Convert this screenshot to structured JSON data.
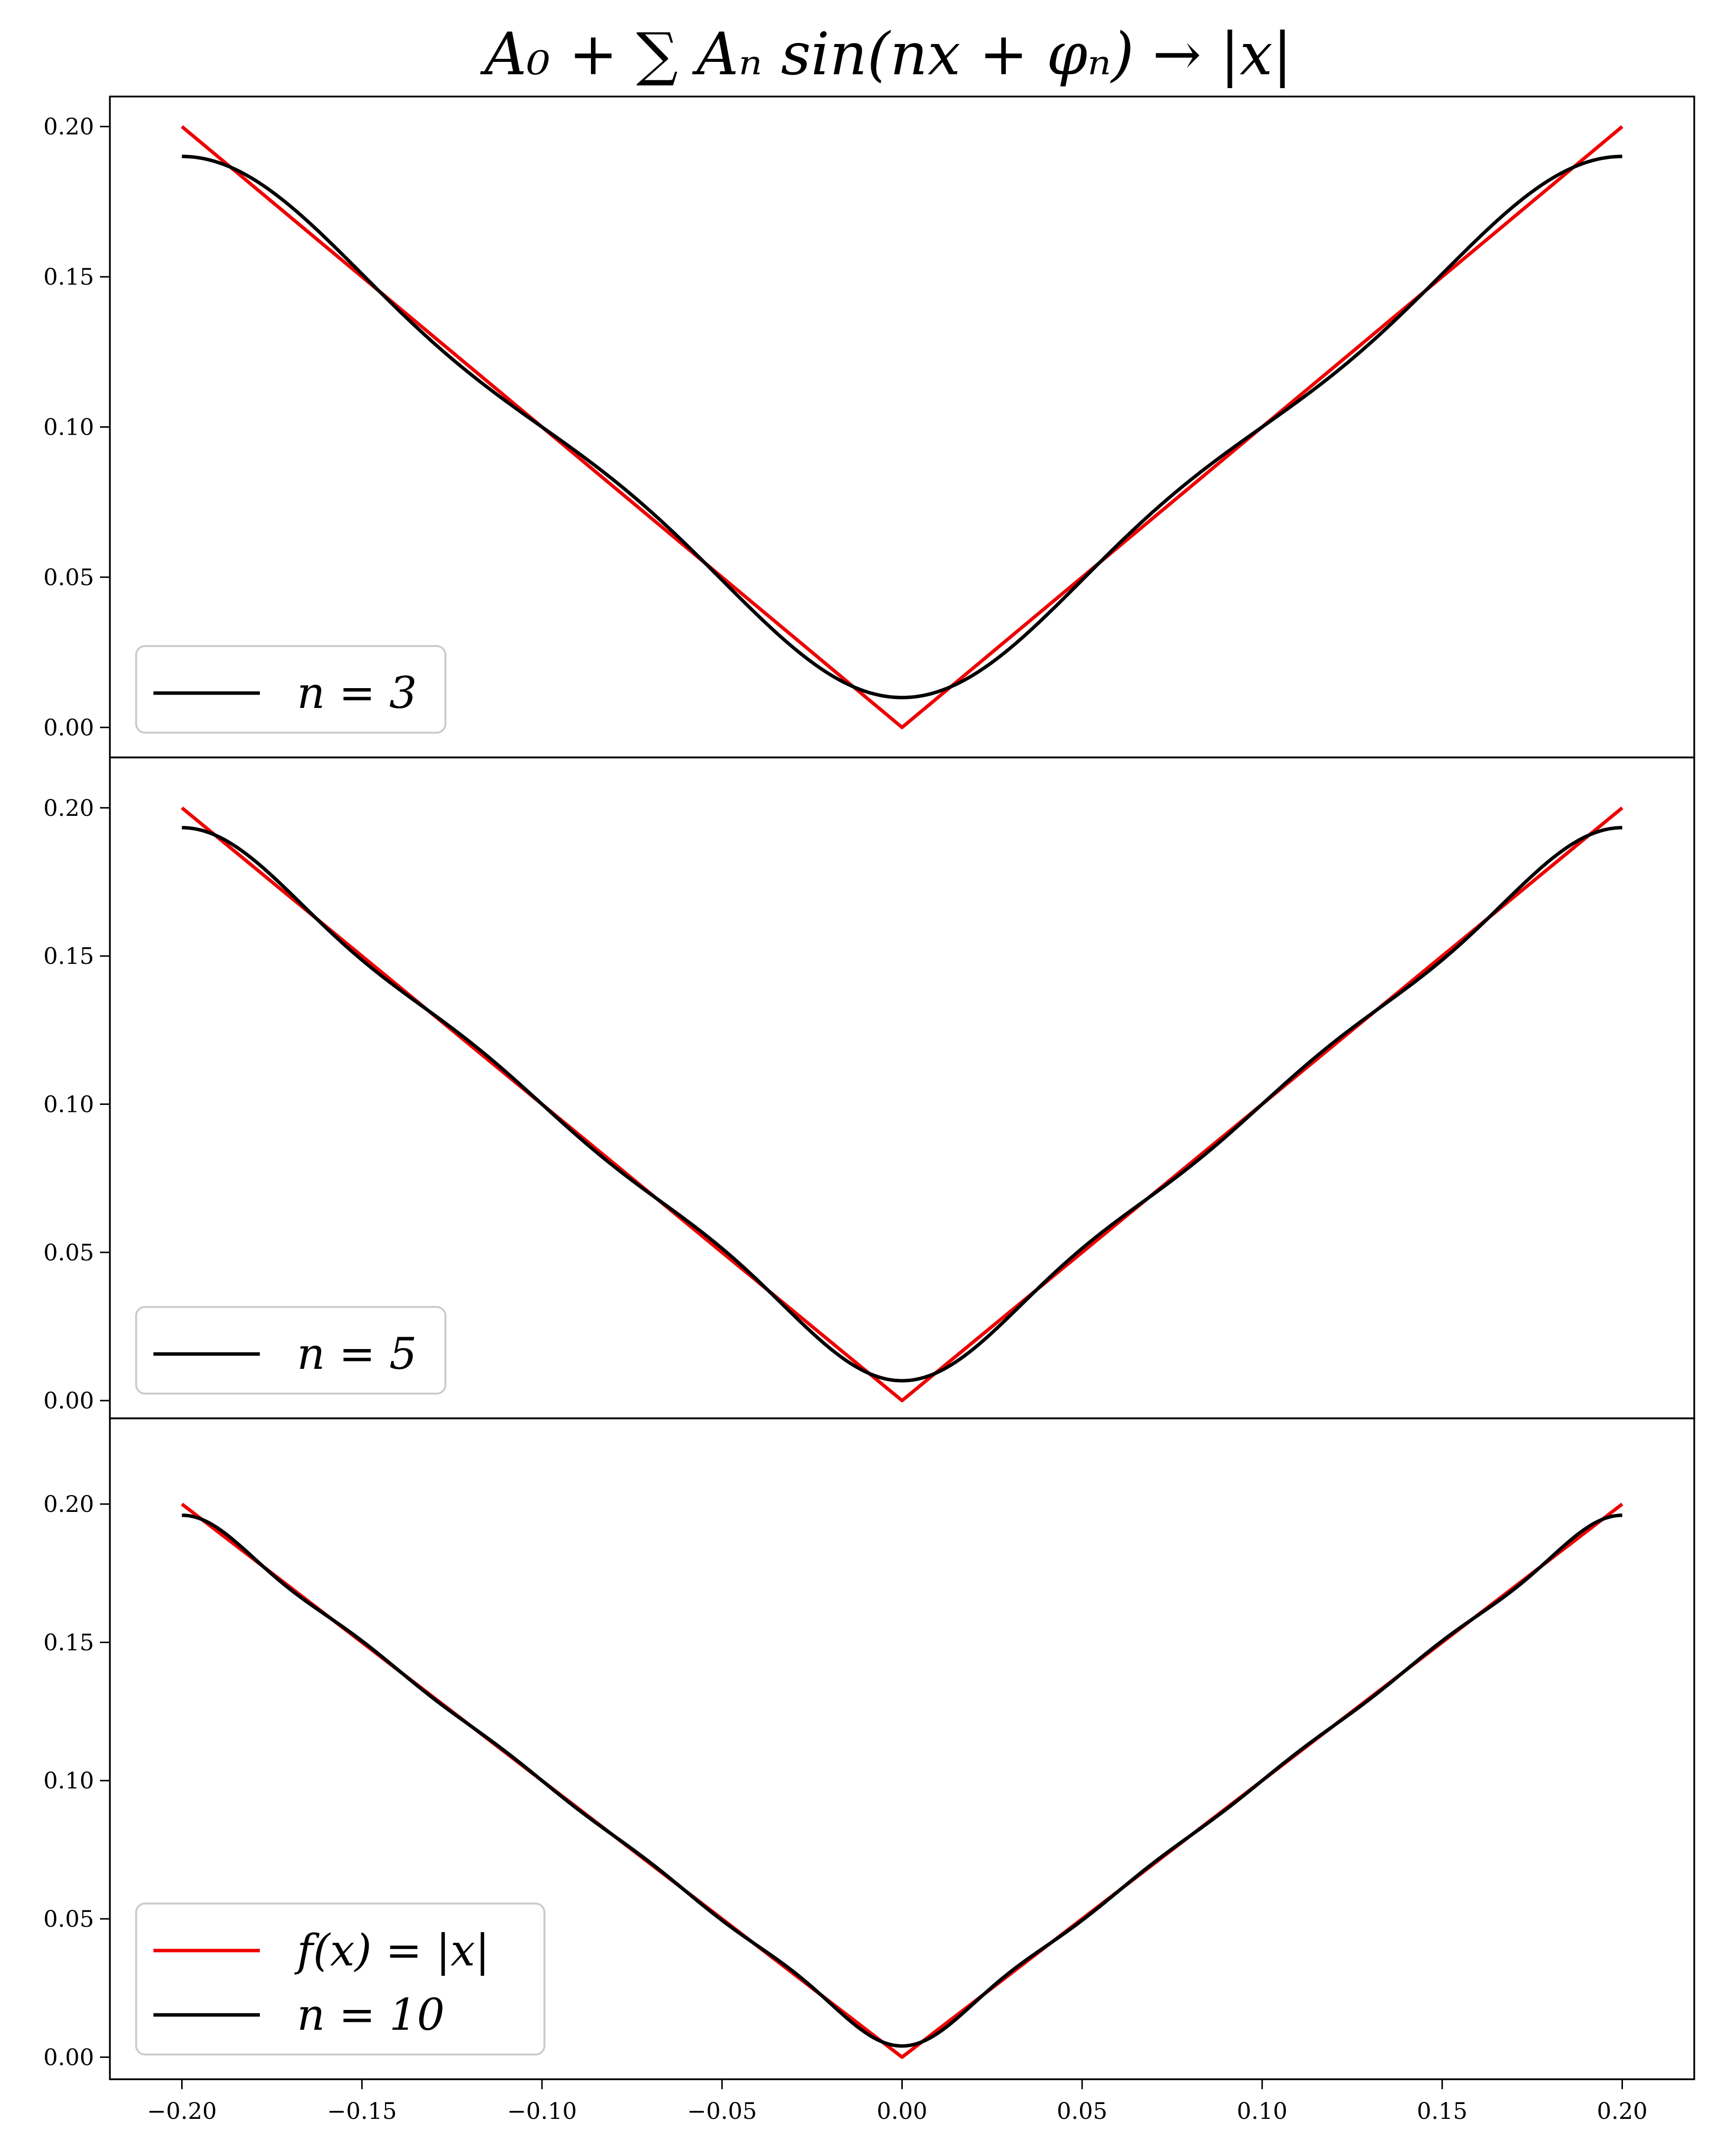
{
  "chart_data": {
    "type": "line",
    "title": "A₀ + ∑ Aₙ sin(nx + φₙ) → |x|",
    "xlim": [
      -0.22,
      0.22
    ],
    "x_ticks": [
      "−0.20",
      "−0.15",
      "−0.10",
      "−0.05",
      "0.00",
      "0.05",
      "0.10",
      "0.15",
      "0.20"
    ],
    "x_tick_values": [
      -0.2,
      -0.15,
      -0.1,
      -0.05,
      0.0,
      0.05,
      0.1,
      0.15,
      0.2
    ],
    "x_range": [
      -0.2,
      0.2
    ],
    "grid": false,
    "legend_location": "lower left",
    "colors": {
      "target": "#ee0000",
      "approx": "#000000"
    },
    "panels": [
      {
        "ylim": [
          -0.01,
          0.21
        ],
        "y_ticks": [
          "0.00",
          "0.05",
          "0.10",
          "0.15",
          "0.20"
        ],
        "y_tick_values": [
          0.0,
          0.05,
          0.1,
          0.15,
          0.2
        ],
        "n_terms": 3,
        "legend": [
          {
            "label": "n = 3",
            "color": "#000000"
          }
        ],
        "series": [
          {
            "name": "",
            "color": "#ee0000",
            "function": "abs(x)"
          },
          {
            "name": "n = 3",
            "color": "#000000",
            "function": "partial Fourier sum of |x|, 3 terms"
          }
        ]
      },
      {
        "ylim": [
          -0.006,
          0.217
        ],
        "y_ticks": [
          "0.00",
          "0.05",
          "0.10",
          "0.15",
          "0.20"
        ],
        "y_tick_values": [
          0.0,
          0.05,
          0.1,
          0.15,
          0.2
        ],
        "n_terms": 5,
        "legend": [
          {
            "label": "n = 5",
            "color": "#000000"
          }
        ],
        "series": [
          {
            "name": "",
            "color": "#ee0000",
            "function": "abs(x)"
          },
          {
            "name": "n = 5",
            "color": "#000000",
            "function": "partial Fourier sum of |x|, 5 terms"
          }
        ]
      },
      {
        "ylim": [
          -0.008,
          0.231
        ],
        "y_ticks": [
          "0.00",
          "0.05",
          "0.10",
          "0.15",
          "0.20"
        ],
        "y_tick_values": [
          0.0,
          0.05,
          0.1,
          0.15,
          0.2
        ],
        "n_terms": 10,
        "legend": [
          {
            "label": "f(x) = |x|",
            "color": "#ee0000"
          },
          {
            "label": "n = 10",
            "color": "#000000"
          }
        ],
        "series": [
          {
            "name": "f(x) = |x|",
            "color": "#ee0000",
            "function": "abs(x)"
          },
          {
            "name": "n = 10",
            "color": "#000000",
            "function": "partial Fourier sum of |x|, 10 terms"
          }
        ]
      }
    ]
  }
}
